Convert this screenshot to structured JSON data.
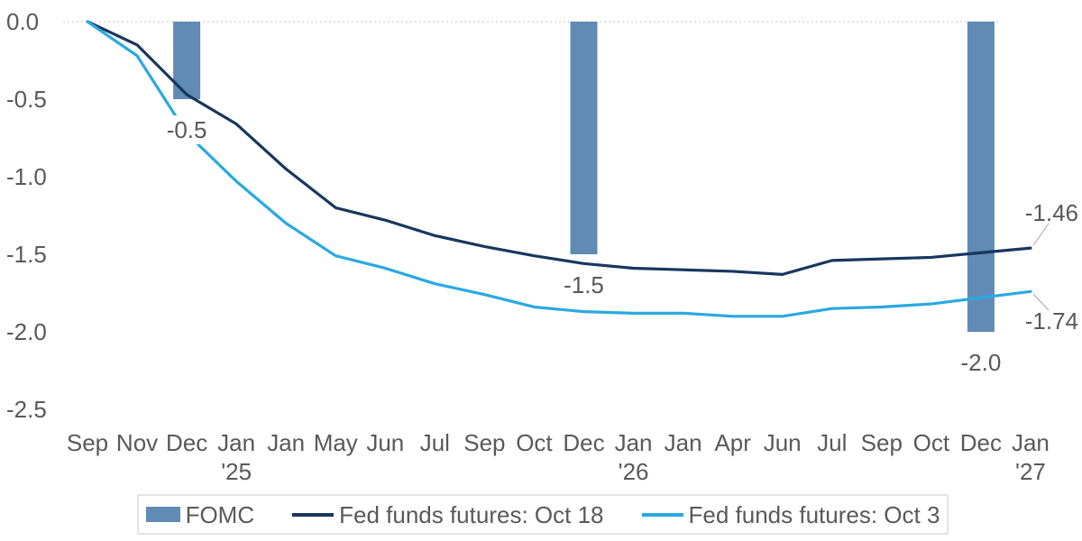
{
  "chart_data": {
    "type": "bar+line",
    "title": "",
    "categories": [
      "Sep",
      "Nov",
      "Dec",
      "Jan",
      "Jan",
      "May",
      "Jun",
      "Jul",
      "Sep",
      "Oct",
      "Dec",
      "Jan",
      "Jan",
      "Apr",
      "Jun",
      "Jul",
      "Sep",
      "Oct",
      "Dec",
      "Jan"
    ],
    "year_markers": [
      {
        "index": 3,
        "label": "'25"
      },
      {
        "index": 11,
        "label": "'26"
      },
      {
        "index": 19,
        "label": "'27"
      }
    ],
    "y_ticks": [
      "0.0",
      "-0.5",
      "-1.0",
      "-1.5",
      "-2.0",
      "-2.5"
    ],
    "ylim": [
      -2.5,
      0.0
    ],
    "grid": "dotted zero line only",
    "legend_position": "bottom",
    "series": [
      {
        "name": "FOMC",
        "type": "bar",
        "color": "#5f8bb4",
        "points": [
          {
            "index": 2,
            "value": -0.5,
            "label": "-0.5"
          },
          {
            "index": 10,
            "value": -1.5,
            "label": "-1.5"
          },
          {
            "index": 18,
            "value": -2.0,
            "label": "-2.0"
          }
        ]
      },
      {
        "name": "Fed funds futures: Oct 18",
        "type": "line",
        "color": "#17375e",
        "values": [
          0.0,
          -0.15,
          -0.47,
          -0.66,
          -0.95,
          -1.2,
          -1.28,
          -1.38,
          -1.45,
          -1.51,
          -1.56,
          -1.59,
          -1.6,
          -1.61,
          -1.63,
          -1.54,
          -1.53,
          -1.52,
          -1.49,
          -1.46
        ],
        "end_label": "-1.46"
      },
      {
        "name": "Fed funds futures: Oct 3",
        "type": "line",
        "color": "#29a9e1",
        "values": [
          0.0,
          -0.22,
          -0.72,
          -1.03,
          -1.3,
          -1.51,
          -1.59,
          -1.69,
          -1.76,
          -1.84,
          -1.87,
          -1.88,
          -1.88,
          -1.9,
          -1.9,
          -1.85,
          -1.84,
          -1.82,
          -1.78,
          -1.74
        ],
        "end_label": "-1.74"
      }
    ]
  },
  "legend": {
    "items": [
      {
        "label": "FOMC",
        "swatch": "bar"
      },
      {
        "label": "Fed funds futures: Oct 18",
        "swatch": "line"
      },
      {
        "label": "Fed funds futures: Oct 3",
        "swatch": "line"
      }
    ]
  },
  "colors": {
    "bar": "#5f8bb4",
    "line_oct18": "#17375e",
    "line_oct3": "#29a9e1",
    "text": "#595959",
    "gridline": "#d9d9d9",
    "leader": "#a6a6a6",
    "legend_border": "#e3e3e3"
  }
}
